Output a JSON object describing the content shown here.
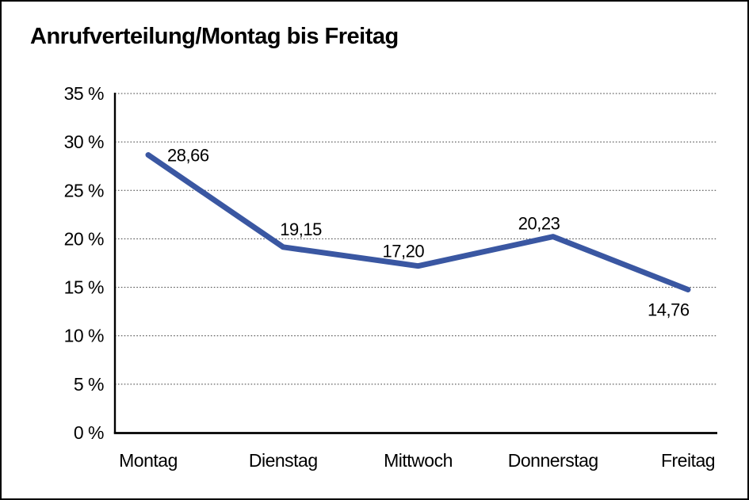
{
  "window": {
    "background_color": "#ffffff",
    "border_color": "#000000"
  },
  "chart_data": {
    "type": "line",
    "title": "Anrufverteilung/Montag bis Freitag",
    "categories": [
      "Montag",
      "Dienstag",
      "Mittwoch",
      "Donnerstag",
      "Freitag"
    ],
    "values": [
      28.66,
      19.15,
      17.2,
      20.23,
      14.76
    ],
    "point_labels": [
      "28,66",
      "19,15",
      "17,20",
      "20,23",
      "14,76"
    ],
    "xlabel": "",
    "ylabel": "",
    "ylim": [
      0,
      35
    ],
    "yticks": [
      {
        "value": 0,
        "label": "0 %"
      },
      {
        "value": 5,
        "label": "5 %"
      },
      {
        "value": 10,
        "label": "10 %"
      },
      {
        "value": 15,
        "label": "15 %"
      },
      {
        "value": 20,
        "label": "20 %"
      },
      {
        "value": 25,
        "label": "25 %"
      },
      {
        "value": 30,
        "label": "30 %"
      },
      {
        "value": 35,
        "label": "35 %"
      }
    ],
    "grid": "horizontal-dotted",
    "legend_position": "none",
    "line_color": "#3A57A2",
    "axis_color": "#000000",
    "gridline_color": "#3c3c3c",
    "text_color": "#000000"
  }
}
